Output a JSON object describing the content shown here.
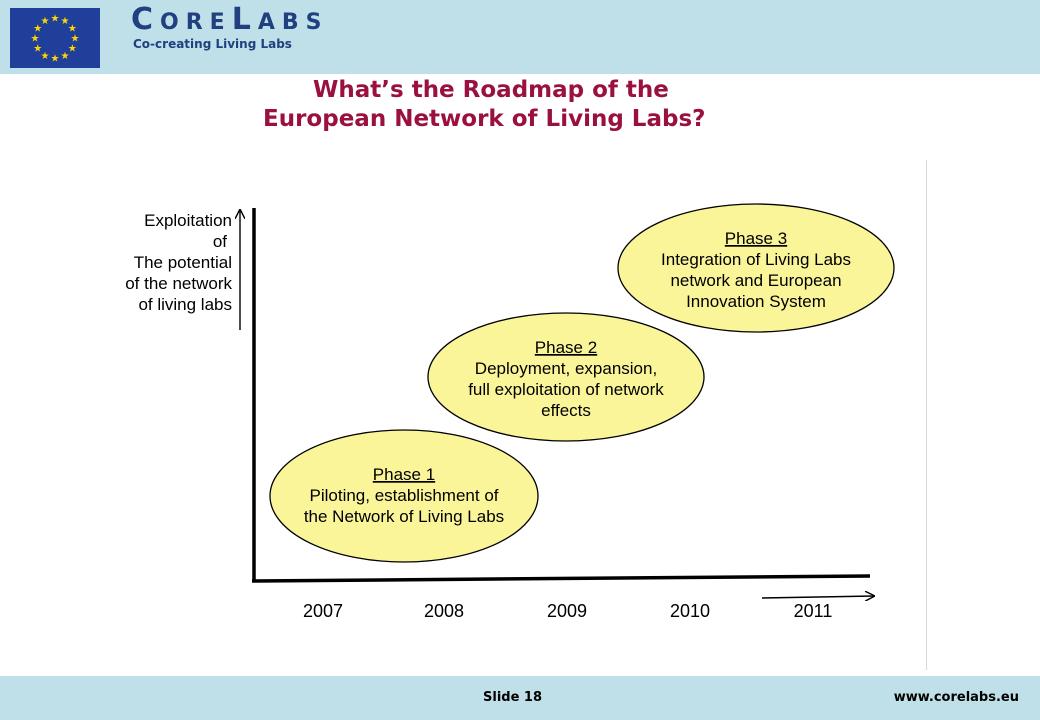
{
  "header": {
    "brand_big_1": "C",
    "brand_small_1": "ORE",
    "brand_big_2": "L",
    "brand_small_2": "ABS",
    "tagline": "Co-creating Living Labs"
  },
  "title": {
    "line1": "What’s the Roadmap of the",
    "line2": "European Network of Living Labs?"
  },
  "y_axis_label": [
    "Exploitation",
    "of",
    "The potential",
    "of the network",
    "of living labs"
  ],
  "years": [
    "2007",
    "2008",
    "2009",
    "2010",
    "2011"
  ],
  "phases": [
    {
      "heading": "Phase 1",
      "lines": [
        "Piloting, establishment of",
        "the Network of Living Labs"
      ]
    },
    {
      "heading": "Phase 2",
      "lines": [
        "Deployment, expansion,",
        "full exploitation of network",
        "effects"
      ]
    },
    {
      "heading": "Phase 3",
      "lines": [
        "Integration of Living Labs",
        "network and European",
        "Innovation System"
      ]
    }
  ],
  "footer": {
    "slide": "Slide 18",
    "website": "www.corelabs.eu"
  },
  "colors": {
    "header_bg": "#bfe0e8",
    "title": "#9a1040",
    "brand": "#20407f",
    "ellipse_fill": "#fbf59a",
    "eu_blue": "#1f3f9a",
    "eu_star": "#ffd400"
  }
}
